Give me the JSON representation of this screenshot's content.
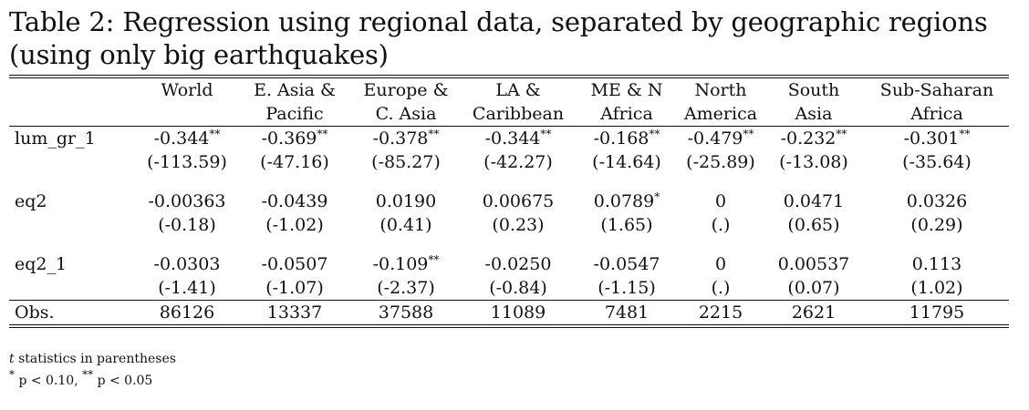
{
  "caption": "Table 2: Regression using regional data, separated by geographic regions (using only big earthquakes)",
  "columns": [
    {
      "line1": "",
      "line2": ""
    },
    {
      "line1": "World",
      "line2": ""
    },
    {
      "line1": "E. Asia &",
      "line2": "Pacific"
    },
    {
      "line1": "Europe &",
      "line2": "C. Asia"
    },
    {
      "line1": "LA &",
      "line2": "Caribbean"
    },
    {
      "line1": "ME & N",
      "line2": "Africa"
    },
    {
      "line1": "North",
      "line2": "America"
    },
    {
      "line1": "South",
      "line2": "Asia"
    },
    {
      "line1": "Sub-Saharan",
      "line2": "Africa"
    }
  ],
  "rows": [
    {
      "label": "lum_gr_1",
      "coef": [
        {
          "v": "-0.344",
          "stars": "**"
        },
        {
          "v": "-0.369",
          "stars": "**"
        },
        {
          "v": "-0.378",
          "stars": "**"
        },
        {
          "v": "-0.344",
          "stars": "**"
        },
        {
          "v": "-0.168",
          "stars": "**"
        },
        {
          "v": "-0.479",
          "stars": "**"
        },
        {
          "v": "-0.232",
          "stars": "**"
        },
        {
          "v": "-0.301",
          "stars": "**"
        }
      ],
      "tstat": [
        "(-113.59)",
        "(-47.16)",
        "(-85.27)",
        "(-42.27)",
        "(-14.64)",
        "(-25.89)",
        "(-13.08)",
        "(-35.64)"
      ]
    },
    {
      "label": "eq2",
      "coef": [
        {
          "v": "-0.00363",
          "stars": ""
        },
        {
          "v": "-0.0439",
          "stars": ""
        },
        {
          "v": "0.0190",
          "stars": ""
        },
        {
          "v": "0.00675",
          "stars": ""
        },
        {
          "v": "0.0789",
          "stars": "*"
        },
        {
          "v": "0",
          "stars": ""
        },
        {
          "v": "0.0471",
          "stars": ""
        },
        {
          "v": "0.0326",
          "stars": ""
        }
      ],
      "tstat": [
        "(-0.18)",
        "(-1.02)",
        "(0.41)",
        "(0.23)",
        "(1.65)",
        "(.)",
        "(0.65)",
        "(0.29)"
      ]
    },
    {
      "label": "eq2_1",
      "coef": [
        {
          "v": "-0.0303",
          "stars": ""
        },
        {
          "v": "-0.0507",
          "stars": ""
        },
        {
          "v": "-0.109",
          "stars": "**"
        },
        {
          "v": "-0.0250",
          "stars": ""
        },
        {
          "v": "-0.0547",
          "stars": ""
        },
        {
          "v": "0",
          "stars": ""
        },
        {
          "v": "0.00537",
          "stars": ""
        },
        {
          "v": "0.113",
          "stars": ""
        }
      ],
      "tstat": [
        "(-1.41)",
        "(-1.07)",
        "(-2.37)",
        "(-0.84)",
        "(-1.15)",
        "(.)",
        "(0.07)",
        "(1.02)"
      ]
    }
  ],
  "obs": {
    "label": "Obs.",
    "values": [
      "86126",
      "13337",
      "37588",
      "11089",
      "7481",
      "2215",
      "2621",
      "11795"
    ]
  },
  "notes": {
    "line1_italic": "t",
    "line1_rest": " statistics in parentheses",
    "line2_star1": "*",
    "line2_part1": " p < 0.10, ",
    "line2_star2": "**",
    "line2_part2": " p < 0.05"
  }
}
